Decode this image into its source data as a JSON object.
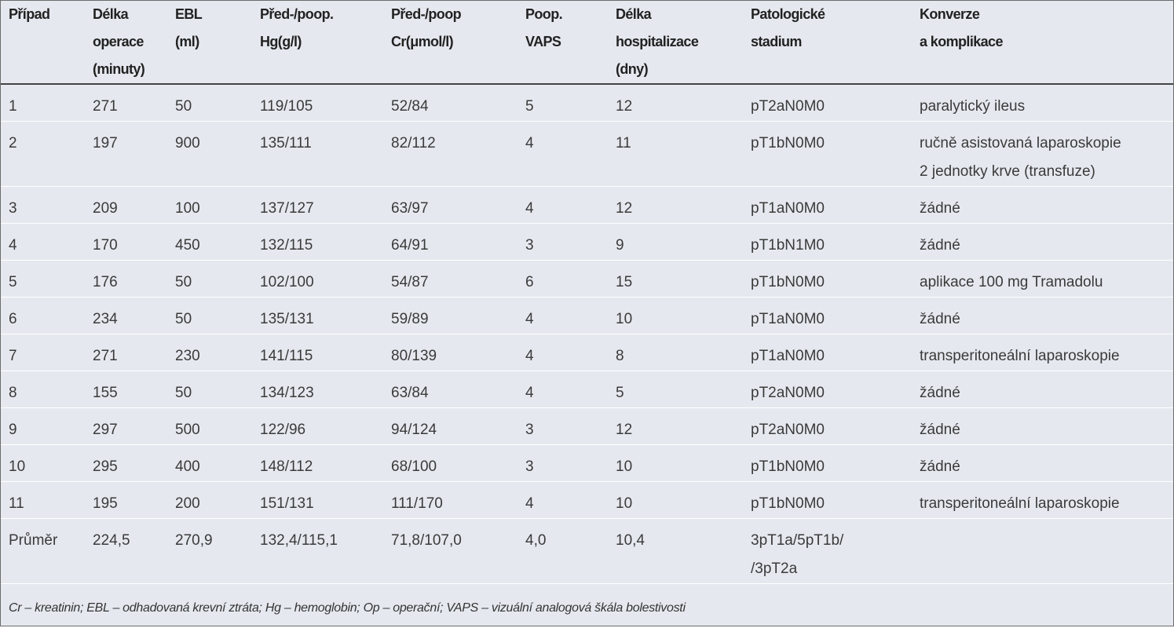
{
  "table": {
    "header": [
      [
        "Případ"
      ],
      [
        "Délka",
        "operace",
        "(minuty)"
      ],
      [
        "EBL",
        "(ml)"
      ],
      [
        "Před-/poop.",
        "Hg(g/l)"
      ],
      [
        "Před-/poop",
        "Cr(μmol/l)"
      ],
      [
        "Poop.",
        "VAPS"
      ],
      [
        "Délka",
        "hospitalizace",
        "(dny)"
      ],
      [
        "Patologické",
        "stadium"
      ],
      [
        "Konverze",
        "a komplikace"
      ]
    ],
    "rows": [
      [
        "1",
        "271",
        "50",
        "119/105",
        "52/84",
        "5",
        "12",
        "pT2aN0M0",
        "paralytický ileus"
      ],
      [
        "2",
        "197",
        "900",
        "135/111",
        "82/112",
        "4",
        "11",
        "pT1bN0M0",
        [
          "ručně asistovaná laparoskopie",
          "2 jednotky krve (transfuze)"
        ]
      ],
      [
        "3",
        "209",
        "100",
        "137/127",
        "63/97",
        "4",
        "12",
        "pT1aN0M0",
        "žádné"
      ],
      [
        "4",
        "170",
        "450",
        "132/115",
        "64/91",
        "3",
        "9",
        "pT1bN1M0",
        "žádné"
      ],
      [
        "5",
        "176",
        "50",
        "102/100",
        "54/87",
        "6",
        "15",
        "pT1bN0M0",
        "aplikace 100 mg Tramadolu"
      ],
      [
        "6",
        "234",
        "50",
        "135/131",
        "59/89",
        "4",
        "10",
        "pT1aN0M0",
        "žádné"
      ],
      [
        "7",
        "271",
        "230",
        "141/115",
        "80/139",
        "4",
        "8",
        "pT1aN0M0",
        "transperitoneální laparoskopie"
      ],
      [
        "8",
        "155",
        "50",
        "134/123",
        "63/84",
        "4",
        "5",
        "pT2aN0M0",
        "žádné"
      ],
      [
        "9",
        "297",
        "500",
        "122/96",
        "94/124",
        "3",
        "12",
        "pT2aN0M0",
        "žádné"
      ],
      [
        "10",
        "295",
        "400",
        "148/112",
        "68/100",
        "3",
        "10",
        "pT1bN0M0",
        "žádné"
      ],
      [
        "11",
        "195",
        "200",
        "151/131",
        "111/170",
        "4",
        "10",
        "pT1bN0M0",
        "transperitoneální laparoskopie"
      ],
      [
        "Průměr",
        "224,5",
        "270,9",
        "132,4/115,1",
        "71,8/107,0",
        "4,0",
        "10,4",
        [
          "3pT1a/5pT1b/",
          "/3pT2a"
        ],
        null
      ]
    ],
    "footnote": "Cr – kreatinin; EBL – odhadovaná krevní ztráta; Hg – hemoglobin; Op – operační; VAPS – vizuální analogová škála bolestivosti"
  }
}
